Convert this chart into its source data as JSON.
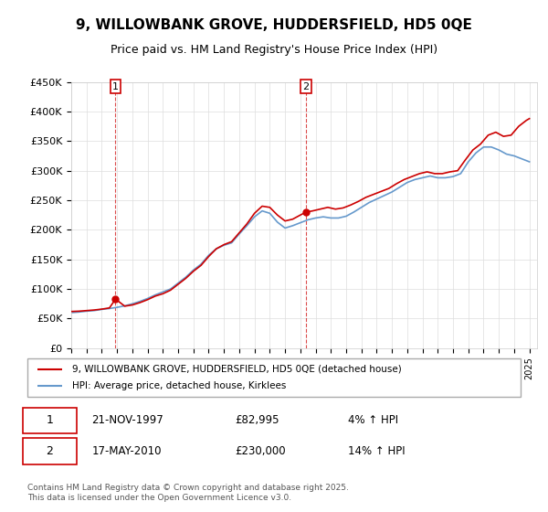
{
  "title": "9, WILLOWBANK GROVE, HUDDERSFIELD, HD5 0QE",
  "subtitle": "Price paid vs. HM Land Registry's House Price Index (HPI)",
  "legend_line1": "9, WILLOWBANK GROVE, HUDDERSFIELD, HD5 0QE (detached house)",
  "legend_line2": "HPI: Average price, detached house, Kirklees",
  "annotation1_label": "1",
  "annotation1_date": "21-NOV-1997",
  "annotation1_price": "£82,995",
  "annotation1_hpi": "4% ↑ HPI",
  "annotation2_label": "2",
  "annotation2_date": "17-MAY-2010",
  "annotation2_price": "£230,000",
  "annotation2_hpi": "14% ↑ HPI",
  "footer": "Contains HM Land Registry data © Crown copyright and database right 2025.\nThis data is licensed under the Open Government Licence v3.0.",
  "red_color": "#cc0000",
  "blue_color": "#6699cc",
  "vline_color": "#cc0000",
  "ylim": [
    0,
    450000
  ],
  "xlim": [
    1995,
    2025.5
  ],
  "yticks": [
    0,
    50000,
    100000,
    150000,
    200000,
    250000,
    300000,
    350000,
    400000,
    450000
  ],
  "ytick_labels": [
    "£0",
    "£50K",
    "£100K",
    "£150K",
    "£200K",
    "£250K",
    "£300K",
    "£350K",
    "£400K",
    "£450K"
  ],
  "marker1_x": 1997.9,
  "marker1_y": 82995,
  "marker2_x": 2010.38,
  "marker2_y": 230000,
  "red_x": [
    1995.0,
    1995.5,
    1996.0,
    1996.5,
    1997.0,
    1997.5,
    1997.9,
    1998.5,
    1999.0,
    1999.5,
    2000.0,
    2000.5,
    2001.0,
    2001.5,
    2002.0,
    2002.5,
    2003.0,
    2003.5,
    2004.0,
    2004.5,
    2005.0,
    2005.5,
    2006.0,
    2006.5,
    2007.0,
    2007.5,
    2008.0,
    2008.5,
    2009.0,
    2009.5,
    2010.0,
    2010.38,
    2010.8,
    2011.3,
    2011.8,
    2012.3,
    2012.8,
    2013.3,
    2013.8,
    2014.3,
    2014.8,
    2015.3,
    2015.8,
    2016.3,
    2016.8,
    2017.3,
    2017.8,
    2018.3,
    2018.8,
    2019.3,
    2019.8,
    2020.3,
    2020.8,
    2021.3,
    2021.8,
    2022.3,
    2022.8,
    2023.3,
    2023.8,
    2024.3,
    2024.8,
    2025.0
  ],
  "red_y": [
    62000,
    62500,
    63500,
    64500,
    66000,
    68000,
    82995,
    71000,
    73000,
    77000,
    82000,
    88000,
    92000,
    98000,
    108000,
    118000,
    130000,
    140000,
    155000,
    168000,
    175000,
    180000,
    195000,
    210000,
    228000,
    240000,
    238000,
    225000,
    215000,
    218000,
    225000,
    230000,
    232000,
    235000,
    238000,
    235000,
    237000,
    242000,
    248000,
    255000,
    260000,
    265000,
    270000,
    278000,
    285000,
    290000,
    295000,
    298000,
    295000,
    295000,
    298000,
    300000,
    318000,
    335000,
    345000,
    360000,
    365000,
    358000,
    360000,
    375000,
    385000,
    388000
  ],
  "blue_x": [
    1995.0,
    1995.5,
    1996.0,
    1996.5,
    1997.0,
    1997.5,
    1998.0,
    1998.5,
    1999.0,
    1999.5,
    2000.0,
    2000.5,
    2001.0,
    2001.5,
    2002.0,
    2002.5,
    2003.0,
    2003.5,
    2004.0,
    2004.5,
    2005.0,
    2005.5,
    2006.0,
    2006.5,
    2007.0,
    2007.5,
    2008.0,
    2008.5,
    2009.0,
    2009.5,
    2010.0,
    2010.5,
    2011.0,
    2011.5,
    2012.0,
    2012.5,
    2013.0,
    2013.5,
    2014.0,
    2014.5,
    2015.0,
    2015.5,
    2016.0,
    2016.5,
    2017.0,
    2017.5,
    2018.0,
    2018.5,
    2019.0,
    2019.5,
    2020.0,
    2020.5,
    2021.0,
    2021.5,
    2022.0,
    2022.5,
    2023.0,
    2023.5,
    2024.0,
    2024.5,
    2025.0
  ],
  "blue_y": [
    60000,
    61000,
    62500,
    63500,
    65500,
    67000,
    69000,
    71500,
    75000,
    79000,
    84000,
    90000,
    95000,
    100000,
    110000,
    120000,
    132000,
    142000,
    157000,
    168000,
    174000,
    178000,
    193000,
    207000,
    222000,
    232000,
    228000,
    213000,
    203000,
    207000,
    212000,
    217000,
    220000,
    222000,
    220000,
    220000,
    223000,
    230000,
    238000,
    246000,
    252000,
    258000,
    264000,
    272000,
    280000,
    285000,
    288000,
    291000,
    288000,
    288000,
    290000,
    295000,
    315000,
    330000,
    340000,
    340000,
    335000,
    328000,
    325000,
    320000,
    315000
  ]
}
